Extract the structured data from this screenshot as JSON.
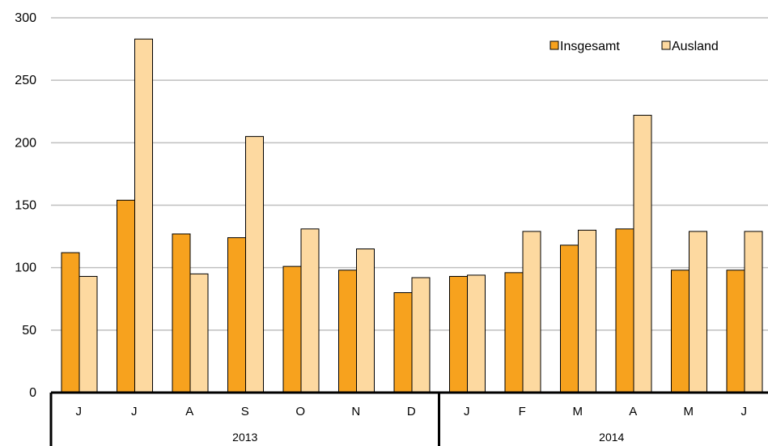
{
  "chart_data": {
    "type": "bar",
    "categories": [
      "J",
      "J",
      "A",
      "S",
      "O",
      "N",
      "D",
      "J",
      "F",
      "M",
      "A",
      "M",
      "J"
    ],
    "groups": [
      {
        "label": "2013",
        "count": 7
      },
      {
        "label": "2014",
        "count": 6
      }
    ],
    "series": [
      {
        "name": "Insgesamt",
        "color": "#F7A21E",
        "values": [
          112,
          154,
          127,
          124,
          101,
          98,
          80,
          93,
          96,
          118,
          131,
          98,
          98
        ]
      },
      {
        "name": "Ausland",
        "color": "#FDD9A0",
        "values": [
          93,
          283,
          95,
          205,
          131,
          115,
          92,
          94,
          129,
          130,
          222,
          129,
          129
        ]
      }
    ],
    "y_ticks": [
      "0",
      "50",
      "100",
      "150",
      "200",
      "250",
      "300"
    ],
    "ylim": [
      0,
      300
    ],
    "grid": true,
    "legend_position": "top-right"
  }
}
